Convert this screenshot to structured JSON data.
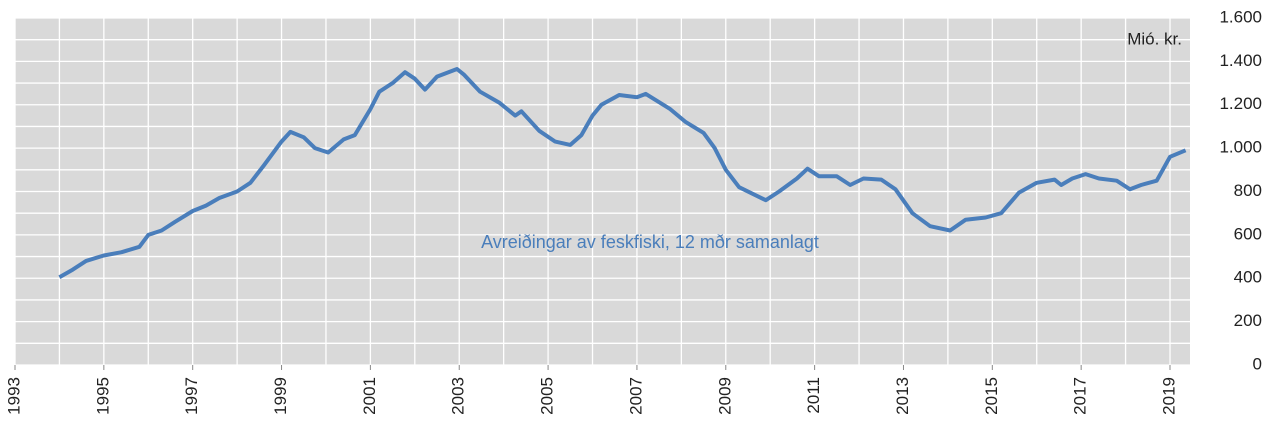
{
  "chart_data": {
    "type": "line",
    "annotation": "Avreiðingar av feskfiski, 12 mðr samanlagt",
    "unit_label": "Mió. kr.",
    "x": [
      1994.0,
      1994.3,
      1994.6,
      1995.0,
      1995.4,
      1995.8,
      1996.0,
      1996.3,
      1996.6,
      1997.0,
      1997.3,
      1997.6,
      1998.0,
      1998.3,
      1998.6,
      1999.0,
      1999.2,
      1999.5,
      1999.75,
      2000.05,
      2000.4,
      2000.65,
      2001.0,
      2001.2,
      2001.5,
      2001.78,
      2002.0,
      2002.23,
      2002.5,
      2002.95,
      2003.1,
      2003.47,
      2003.9,
      2004.26,
      2004.4,
      2004.8,
      2005.16,
      2005.5,
      2005.75,
      2006.0,
      2006.2,
      2006.6,
      2007.0,
      2007.2,
      2007.75,
      2008.1,
      2008.5,
      2008.75,
      2009.0,
      2009.3,
      2009.6,
      2009.9,
      2010.2,
      2010.6,
      2010.84,
      2011.1,
      2011.5,
      2011.8,
      2012.1,
      2012.5,
      2012.82,
      2013.2,
      2013.6,
      2014.05,
      2014.4,
      2014.85,
      2015.2,
      2015.6,
      2016.0,
      2016.4,
      2016.55,
      2016.8,
      2017.1,
      2017.4,
      2017.8,
      2018.1,
      2018.35,
      2018.7,
      2019.0,
      2019.35
    ],
    "series": [
      {
        "color": "#4a7ebb",
        "values": [
          405,
          440,
          480,
          505,
          520,
          545,
          600,
          620,
          660,
          710,
          735,
          770,
          800,
          840,
          920,
          1030,
          1075,
          1050,
          1000,
          980,
          1040,
          1060,
          1180,
          1260,
          1300,
          1350,
          1320,
          1270,
          1330,
          1365,
          1340,
          1260,
          1210,
          1150,
          1170,
          1080,
          1030,
          1015,
          1060,
          1150,
          1200,
          1245,
          1235,
          1250,
          1180,
          1120,
          1070,
          1000,
          900,
          820,
          790,
          760,
          800,
          860,
          905,
          870,
          870,
          830,
          860,
          855,
          810,
          700,
          640,
          620,
          670,
          680,
          700,
          795,
          840,
          855,
          830,
          860,
          880,
          860,
          850,
          810,
          830,
          850,
          960,
          990
        ]
      }
    ],
    "xlim": [
      1993,
      2019.45
    ],
    "xticks": [
      1993,
      1995,
      1997,
      1999,
      2001,
      2003,
      2005,
      2007,
      2009,
      2011,
      2013,
      2015,
      2017,
      2019
    ],
    "xminorticks": [
      1993,
      1994,
      1995,
      1996,
      1997,
      1998,
      1999,
      2000,
      2001,
      2002,
      2003,
      2004,
      2005,
      2006,
      2007,
      2008,
      2009,
      2010,
      2011,
      2012,
      2013,
      2014,
      2015,
      2016,
      2017,
      2018,
      2019
    ],
    "ylim": [
      0,
      1600
    ],
    "yticks": [
      0,
      200,
      400,
      600,
      800,
      {
        "value": 1000,
        "label": "1.000"
      },
      {
        "value": 1200,
        "label": "1.200"
      },
      {
        "value": 1400,
        "label": "1.400"
      },
      {
        "value": 1600,
        "label": "1.600"
      }
    ],
    "yminorticks": [
      100,
      300,
      500,
      700,
      900,
      1100,
      1300,
      1500
    ],
    "grid": true
  }
}
